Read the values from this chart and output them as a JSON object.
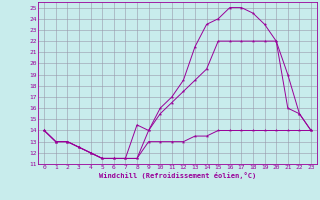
{
  "xlabel": "Windchill (Refroidissement éolien,°C)",
  "bg_color": "#c8ecec",
  "grid_color": "#9999aa",
  "line_color": "#990099",
  "xlim": [
    -0.5,
    23.5
  ],
  "ylim": [
    11,
    25.5
  ],
  "xticks": [
    0,
    1,
    2,
    3,
    4,
    5,
    6,
    7,
    8,
    9,
    10,
    11,
    12,
    13,
    14,
    15,
    16,
    17,
    18,
    19,
    20,
    21,
    22,
    23
  ],
  "yticks": [
    11,
    12,
    13,
    14,
    15,
    16,
    17,
    18,
    19,
    20,
    21,
    22,
    23,
    24,
    25
  ],
  "series": [
    {
      "x": [
        0,
        1,
        2,
        3,
        4,
        5,
        6,
        7,
        8,
        9,
        10,
        11,
        12,
        13,
        14,
        15,
        16,
        17,
        18,
        19,
        20,
        21,
        22,
        23
      ],
      "y": [
        14,
        13,
        13,
        12.5,
        12,
        11.5,
        11.5,
        11.5,
        11.5,
        13,
        13,
        13,
        13,
        13.5,
        13.5,
        14,
        14,
        14,
        14,
        14,
        14,
        14,
        14,
        14
      ]
    },
    {
      "x": [
        0,
        1,
        2,
        3,
        4,
        5,
        6,
        7,
        8,
        9,
        10,
        11,
        12,
        13,
        14,
        15,
        16,
        17,
        18,
        19,
        20,
        21,
        22,
        23
      ],
      "y": [
        14,
        13,
        13,
        12.5,
        12,
        11.5,
        11.5,
        11.5,
        14.5,
        14,
        15.5,
        16.5,
        17.5,
        18.5,
        19.5,
        22,
        22,
        22,
        22,
        22,
        22,
        16,
        15.5,
        14
      ]
    },
    {
      "x": [
        0,
        1,
        2,
        3,
        4,
        5,
        6,
        7,
        8,
        9,
        10,
        11,
        12,
        13,
        14,
        15,
        16,
        17,
        18,
        19,
        20,
        21,
        22,
        23
      ],
      "y": [
        14,
        13,
        13,
        12.5,
        12,
        11.5,
        11.5,
        11.5,
        11.5,
        14,
        16,
        17,
        18.5,
        21.5,
        23.5,
        24,
        25,
        25,
        24.5,
        23.5,
        22,
        19,
        15.5,
        14
      ]
    }
  ]
}
